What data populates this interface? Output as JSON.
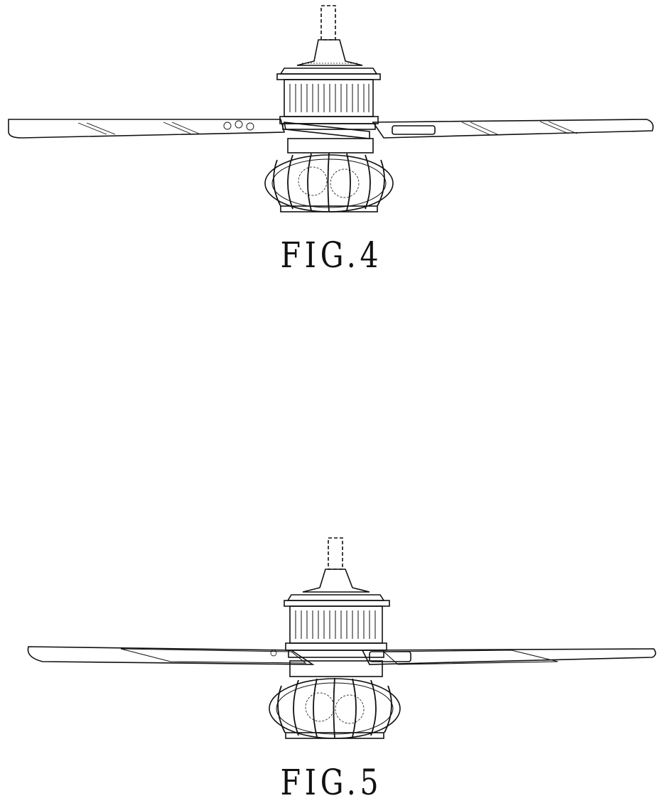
{
  "figures": [
    {
      "caption": "FIG.4"
    },
    {
      "caption": "FIG.5"
    }
  ]
}
